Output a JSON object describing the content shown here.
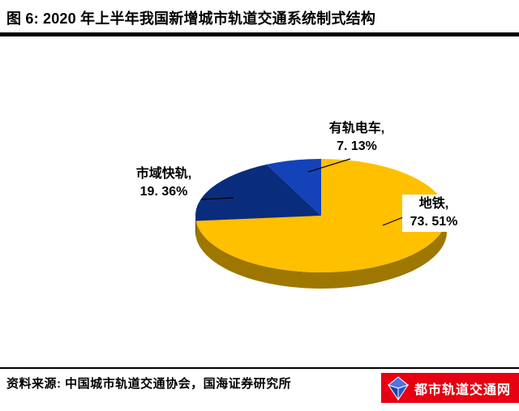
{
  "header": {
    "title": "图 6: 2020 年上半年我国新增城市轨道交通系统制式结构"
  },
  "chart_data": {
    "type": "pie",
    "style": "3d",
    "title": "2020 年上半年我国新增城市轨道交通系统制式结构",
    "start_angle_deg": 0,
    "direction": "clockwise",
    "unit": "%",
    "slices": [
      {
        "label": "地铁",
        "label_text": "地铁,",
        "value": 73.51,
        "value_text": "73. 51%",
        "color": "#FFC000"
      },
      {
        "label": "市域快轨",
        "label_text": "市域快轨,",
        "value": 19.36,
        "value_text": "19. 36%",
        "color": "#0A2C7D"
      },
      {
        "label": "有轨电车",
        "label_text": "有轨电车,",
        "value": 7.13,
        "value_text": "7. 13%",
        "color": "#1442B8"
      }
    ]
  },
  "footer": {
    "source": "资料来源: 中国城市轨道交通协会，国海证券研究所",
    "badge_text": "都市轨道交通网"
  },
  "colors": {
    "title_rule": "#000000",
    "badge_red": "#E60012",
    "badge_blue": "#2A52CC",
    "pie_gold": "#FFC000",
    "pie_navy": "#0A2C7D",
    "pie_blue": "#1442B8"
  }
}
